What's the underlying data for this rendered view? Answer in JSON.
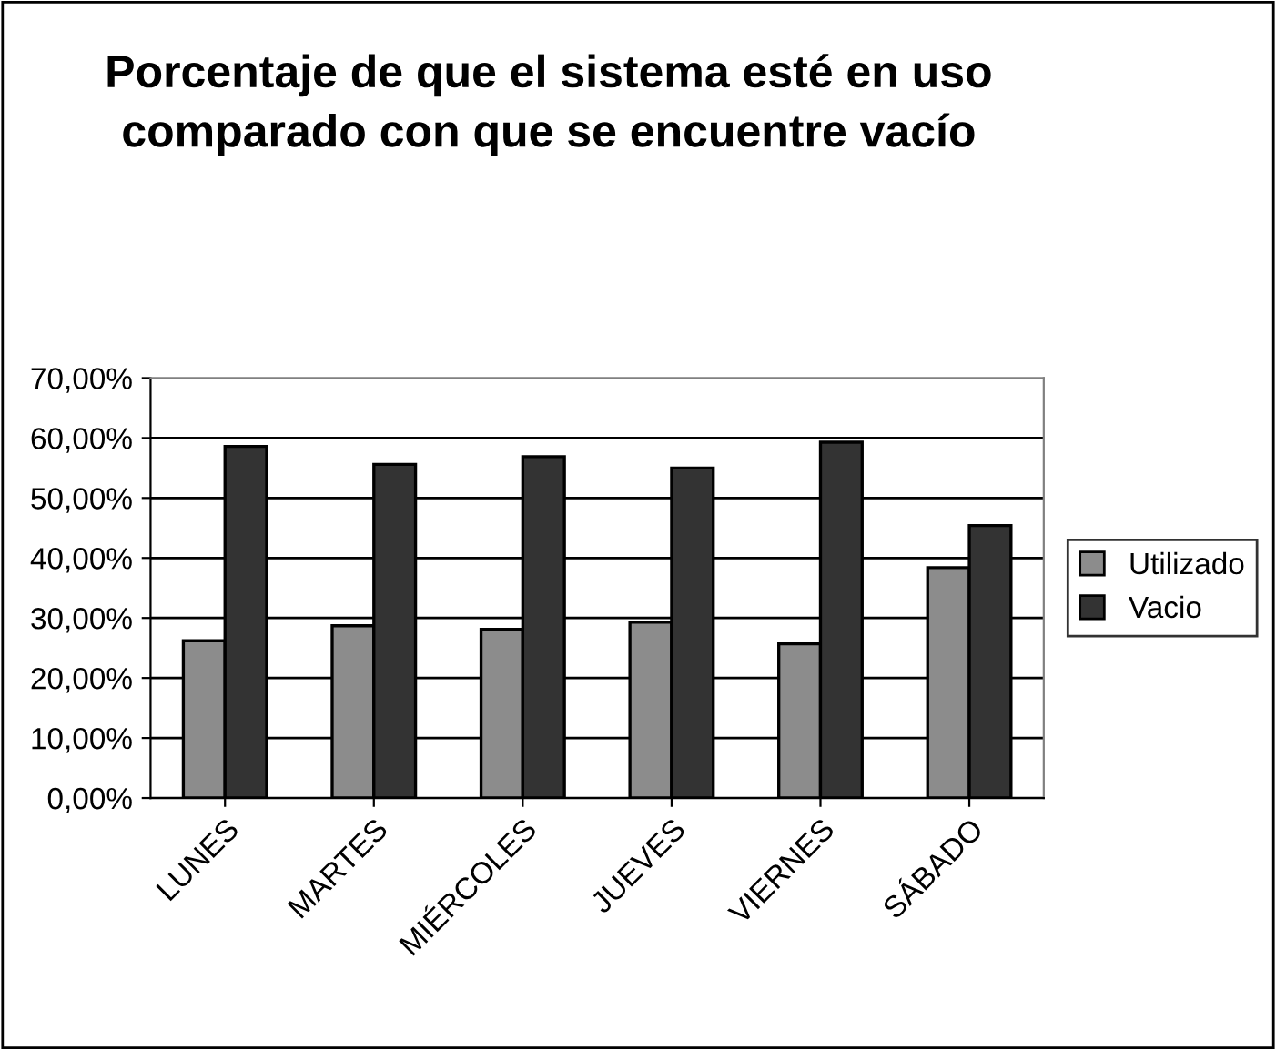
{
  "chart_data": {
    "type": "bar",
    "title": "Porcentaje de que el sistema esté en uso comparado con que se encuentre vacío",
    "categories": [
      "LUNES",
      "MARTES",
      "MIÉRCOLES",
      "JUEVES",
      "VIERNES",
      "SÁBADO"
    ],
    "series": [
      {
        "name": "Utilizado",
        "color": "#8c8c8c",
        "values": [
          26.2,
          28.7,
          28.1,
          29.3,
          25.7,
          38.4
        ]
      },
      {
        "name": "Vacio",
        "color": "#333333",
        "values": [
          58.6,
          55.6,
          56.9,
          55.0,
          59.3,
          45.4
        ]
      }
    ],
    "ylim": [
      0,
      70
    ],
    "yticks": [
      {
        "value": 0,
        "label": "0,00%"
      },
      {
        "value": 10,
        "label": "10,00%"
      },
      {
        "value": 20,
        "label": "20,00%"
      },
      {
        "value": 30,
        "label": "30,00%"
      },
      {
        "value": 40,
        "label": "40,00%"
      },
      {
        "value": 50,
        "label": "50,00%"
      },
      {
        "value": 60,
        "label": "60,00%"
      },
      {
        "value": 70,
        "label": "70,00%"
      }
    ],
    "grid": "y",
    "legend": "right"
  }
}
